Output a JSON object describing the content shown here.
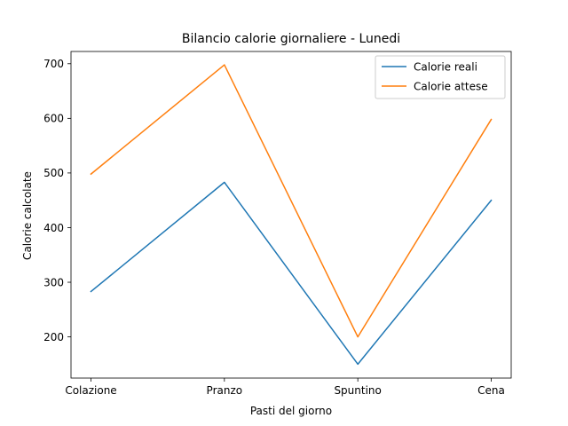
{
  "chart_data": {
    "type": "line",
    "title": "Bilancio calorie giornaliere - Lunedi",
    "xlabel": "Pasti del giorno",
    "ylabel": "Calorie calcolate",
    "categories": [
      "Colazione",
      "Pranzo",
      "Spuntino",
      "Cena"
    ],
    "series": [
      {
        "name": "Calorie reali",
        "values": [
          283,
          483,
          150,
          450
        ],
        "color": "#1f77b4"
      },
      {
        "name": "Calorie attese",
        "values": [
          498,
          698,
          200,
          598
        ],
        "color": "#ff7f0e"
      }
    ],
    "ylim": [
      124.6,
      722.4
    ],
    "yticks": [
      200,
      300,
      400,
      500,
      600,
      700
    ],
    "grid": false,
    "legend_position": "top-right"
  }
}
